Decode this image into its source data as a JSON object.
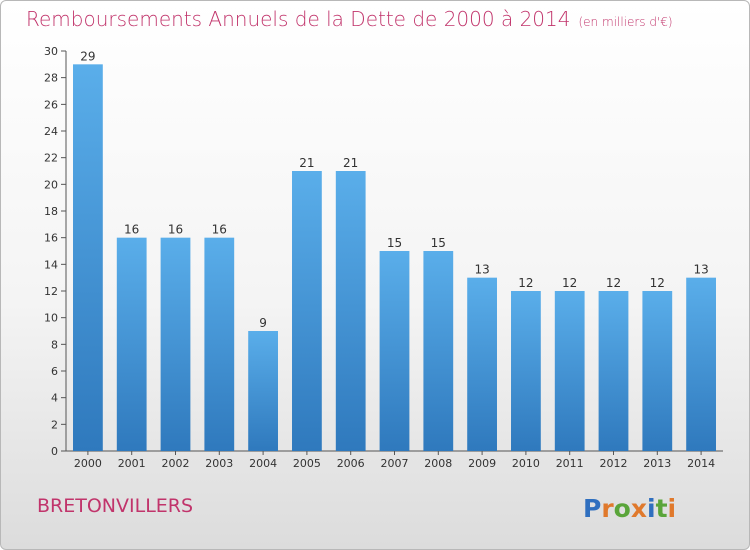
{
  "chart_data": {
    "type": "bar",
    "title": "Remboursements Annuels de la Dette de 2000 à 2014",
    "unit_note": "(en milliers d'€)",
    "categories": [
      "2000",
      "2001",
      "2002",
      "2003",
      "2004",
      "2005",
      "2006",
      "2007",
      "2008",
      "2009",
      "2010",
      "2011",
      "2012",
      "2013",
      "2014"
    ],
    "values": [
      29,
      16,
      16,
      16,
      9,
      21,
      21,
      15,
      15,
      13,
      12,
      12,
      12,
      12,
      13
    ],
    "ylim": [
      0,
      30
    ],
    "yticks": [
      0,
      2,
      4,
      6,
      8,
      10,
      12,
      14,
      16,
      18,
      20,
      22,
      24,
      26,
      28,
      30
    ],
    "xlabel": "",
    "ylabel": "",
    "grid": false,
    "bar_color_top": "#5aaeea",
    "bar_color_bottom": "#2f79bd",
    "title_color": "#c1346b"
  },
  "footer": {
    "commune": "BRETONVILLERS",
    "brand": "Proxiti"
  }
}
